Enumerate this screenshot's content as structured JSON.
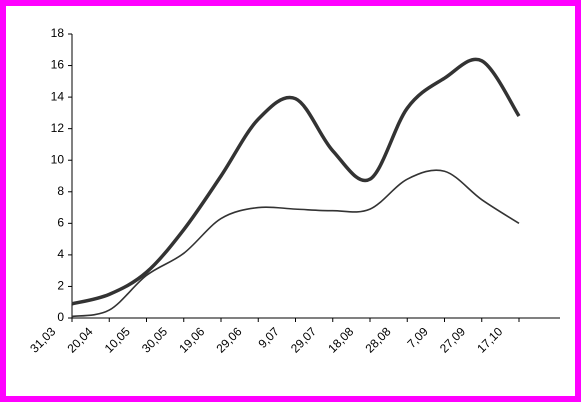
{
  "chart_data": {
    "type": "line",
    "categories": [
      "31,03",
      "20,04",
      "10,05",
      "30,05",
      "19,06",
      "29,06",
      "9,07",
      "29,07",
      "18,08",
      "28,08",
      "7,09",
      "27,09",
      "17,10"
    ],
    "series": [
      {
        "color": "#333333",
        "values": [
          0.9,
          1.5,
          2.9,
          5.6,
          9.0,
          12.6,
          13.9,
          10.6,
          8.8,
          13.3,
          15.2,
          16.3,
          12.8
        ]
      },
      {
        "color": "#333333",
        "values": [
          0.1,
          0.5,
          2.7,
          4.1,
          6.3,
          7.0,
          6.9,
          6.8,
          6.9,
          8.8,
          9.3,
          7.5,
          6.0
        ]
      }
    ],
    "ylim": [
      0,
      18
    ],
    "yticks": [
      0,
      2,
      4,
      6,
      8,
      10,
      12,
      14,
      16,
      18
    ],
    "grid": false
  }
}
